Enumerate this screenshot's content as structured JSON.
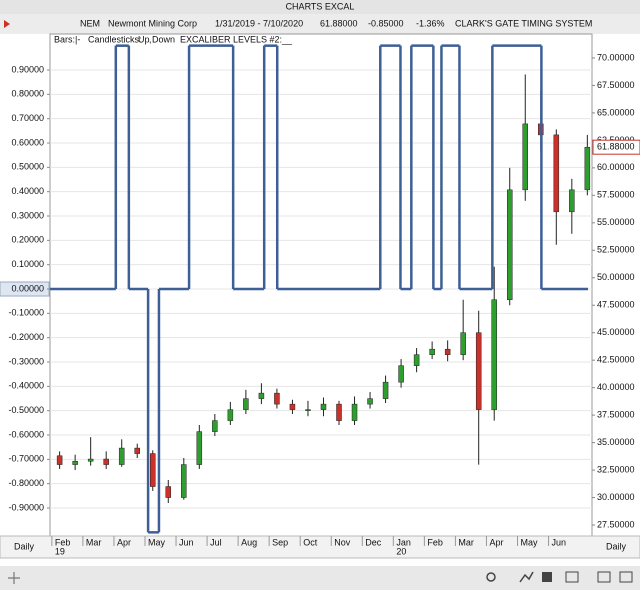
{
  "window_title": "CHARTS EXCAL",
  "header": {
    "symbol": "NEM",
    "company": "Newmont Mining Corp",
    "date_range": "1/31/2019 - 7/10/2020",
    "last": "61.88000",
    "change": "-0.85000",
    "change_pct": "-1.36%",
    "system": "CLARK'S GATE TIMING SYSTEM"
  },
  "toolbar": {
    "period_left": "Daily",
    "period_right": "Daily"
  },
  "chart_data": {
    "type": "candlestick",
    "legend": {
      "bars": "Bars:|-",
      "candles": "Candlesticks:",
      "up": "Up",
      "sep": ",",
      "down": "Down",
      "levels": "EXCALIBER LEVELS #2:__"
    },
    "xlim": [
      -0.06,
      17.4
    ],
    "xticks": [
      {
        "value": 0,
        "label": "Feb"
      },
      {
        "value": 1,
        "label": "Mar"
      },
      {
        "value": 2,
        "label": "Apr"
      },
      {
        "value": 3,
        "label": "May"
      },
      {
        "value": 4,
        "label": "Jun"
      },
      {
        "value": 5,
        "label": "Jul"
      },
      {
        "value": 6,
        "label": "Aug"
      },
      {
        "value": 7,
        "label": "Sep"
      },
      {
        "value": 8,
        "label": "Oct"
      },
      {
        "value": 9,
        "label": "Nov"
      },
      {
        "value": 10,
        "label": "Dec"
      },
      {
        "value": 11,
        "label": "Jan"
      },
      {
        "value": 12,
        "label": "Feb"
      },
      {
        "value": 13,
        "label": "Mar"
      },
      {
        "value": 14,
        "label": "Apr"
      },
      {
        "value": 15,
        "label": "May"
      },
      {
        "value": 16,
        "label": "Jun"
      }
    ],
    "year_ticks": [
      {
        "value": 0,
        "label": "19"
      },
      {
        "value": 11,
        "label": "20"
      }
    ],
    "ylim": [
      -1.015,
      1.048
    ],
    "yticks": [
      {
        "value": 0.9,
        "label": "0.90000"
      },
      {
        "value": 0.8,
        "label": "0.80000"
      },
      {
        "value": 0.7,
        "label": "0.70000"
      },
      {
        "value": 0.6,
        "label": "0.60000"
      },
      {
        "value": 0.5,
        "label": "0.50000"
      },
      {
        "value": 0.4,
        "label": "0.40000"
      },
      {
        "value": 0.3,
        "label": "0.30000"
      },
      {
        "value": 0.2,
        "label": "0.20000"
      },
      {
        "value": 0.1,
        "label": "0.10000"
      },
      {
        "value": 0,
        "label": "0.00000"
      },
      {
        "value": -0.1,
        "label": "-0.10000"
      },
      {
        "value": -0.2,
        "label": "-0.20000"
      },
      {
        "value": -0.3,
        "label": "-0.30000"
      },
      {
        "value": -0.4,
        "label": "-0.40000"
      },
      {
        "value": -0.5,
        "label": "-0.50000"
      },
      {
        "value": -0.6,
        "label": "-0.60000"
      },
      {
        "value": -0.7,
        "label": "-0.70000"
      },
      {
        "value": -0.8,
        "label": "-0.80000"
      },
      {
        "value": -0.9,
        "label": "-0.90000"
      }
    ],
    "y2lim": [
      26.5,
      72.18
    ],
    "y2ticks": [
      {
        "value": 70,
        "label": "70.00000"
      },
      {
        "value": 67.5,
        "label": "67.50000"
      },
      {
        "value": 65,
        "label": "65.00000"
      },
      {
        "value": 62.5,
        "label": "62.50000"
      },
      {
        "value": 60,
        "label": "60.00000"
      },
      {
        "value": 57.5,
        "label": "57.50000"
      },
      {
        "value": 55,
        "label": "55.00000"
      },
      {
        "value": 52.5,
        "label": "52.50000"
      },
      {
        "value": 50,
        "label": "50.00000"
      },
      {
        "value": 47.5,
        "label": "47.50000"
      },
      {
        "value": 45,
        "label": "45.00000"
      },
      {
        "value": 42.5,
        "label": "42.50000"
      },
      {
        "value": 40,
        "label": "40.00000"
      },
      {
        "value": 37.5,
        "label": "37.50000"
      },
      {
        "value": 35,
        "label": "35.00000"
      },
      {
        "value": 32.5,
        "label": "32.50000"
      },
      {
        "value": 30,
        "label": "30.00000"
      },
      {
        "value": 27.5,
        "label": "27.50000"
      }
    ],
    "highlight_ytick": 9,
    "grid": true,
    "series": [
      {
        "type": "candlestick",
        "axis": "y2",
        "up_color": "#2e9e2e",
        "down_color": "#c8322b",
        "x": [
          0.25,
          0.75,
          1.25,
          1.75,
          2.25,
          2.75,
          3.25,
          3.75,
          4.25,
          4.75,
          5.25,
          5.75,
          6.25,
          6.75,
          7.25,
          7.75,
          8.25,
          8.75,
          9.25,
          9.75,
          10.25,
          10.75,
          11.25,
          11.75,
          12.25,
          12.75,
          13.25,
          13.75,
          14.25,
          14.75,
          15.25,
          15.75,
          16.25,
          16.75,
          17.25
        ],
        "open": [
          33.8,
          33.0,
          33.3,
          33.5,
          33.0,
          34.5,
          34.0,
          31.0,
          30.0,
          33.0,
          36.0,
          37.0,
          38.0,
          39.0,
          39.5,
          38.5,
          38.0,
          38.0,
          38.5,
          37.0,
          38.5,
          39.0,
          40.5,
          42.0,
          43.0,
          43.5,
          43.0,
          45.0,
          38.0,
          48.0,
          58.0,
          64.0,
          63.0,
          56.0,
          58.0
        ],
        "high": [
          34.2,
          33.9,
          35.5,
          34.2,
          35.3,
          34.9,
          34.3,
          31.6,
          33.6,
          36.6,
          37.6,
          38.7,
          39.8,
          40.4,
          39.9,
          38.9,
          38.8,
          39.1,
          38.8,
          39.2,
          39.6,
          41.1,
          42.6,
          43.6,
          44.2,
          44.3,
          48.0,
          47.0,
          51.0,
          60.0,
          68.5,
          67.0,
          63.5,
          59.0,
          63.0
        ],
        "low": [
          32.6,
          32.5,
          32.9,
          32.6,
          32.8,
          33.6,
          30.6,
          29.5,
          29.8,
          32.6,
          35.6,
          36.6,
          37.6,
          38.5,
          38.1,
          37.6,
          37.4,
          37.4,
          36.6,
          36.6,
          38.1,
          38.6,
          40.0,
          41.4,
          42.6,
          42.4,
          42.5,
          33.0,
          37.0,
          47.5,
          57.0,
          61.5,
          53.0,
          54.0,
          57.5
        ],
        "close": [
          33.0,
          33.3,
          33.5,
          33.0,
          34.5,
          34.0,
          31.0,
          30.0,
          33.0,
          36.0,
          37.0,
          38.0,
          39.0,
          39.5,
          38.5,
          38.0,
          38.0,
          38.5,
          37.0,
          38.5,
          39.0,
          40.5,
          42.0,
          43.0,
          43.5,
          43.0,
          45.0,
          38.0,
          48.0,
          58.0,
          64.0,
          63.0,
          56.0,
          58.0,
          61.88
        ],
        "last_label": "61.88000",
        "last_color": "#c8322b"
      },
      {
        "type": "step",
        "axis": "y",
        "color": "#3d5f95",
        "x": [
          -0.06,
          2.06,
          2.48,
          3.1,
          3.45,
          4.42,
          5.84,
          6.84,
          7.26,
          10.58,
          11.23,
          11.58,
          12.29,
          12.55,
          13.13,
          14.19,
          15.77
        ],
        "values": [
          0,
          1,
          0,
          -1,
          0,
          1,
          0,
          1,
          0,
          1,
          0,
          1,
          0,
          1,
          0,
          1,
          0
        ]
      }
    ]
  }
}
